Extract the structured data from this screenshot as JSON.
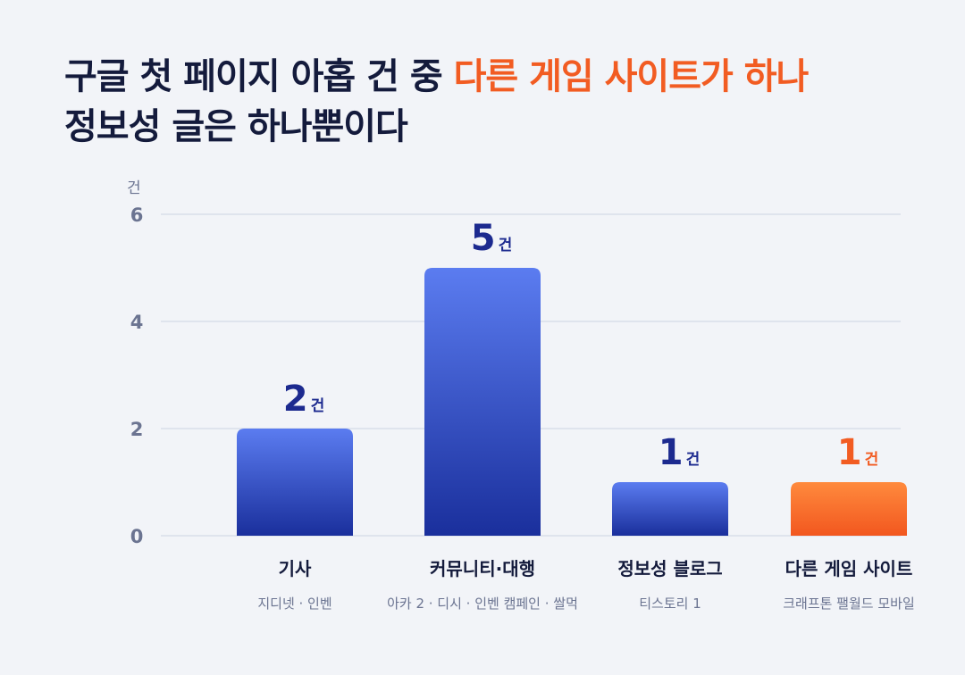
{
  "title": {
    "line1_prefix": "구글 첫 페이지 아홉 건 중 ",
    "line1_accent": "다른 게임 사이트가 하나",
    "line2": "정보성 글은 하나뿐이다"
  },
  "colors": {
    "title": "#141b3c",
    "accent": "#f25c22",
    "bar_top": "#5b7cf0",
    "bar_bottom": "#1a2f9c",
    "bar_highlight_top": "#ff8a3d",
    "bar_highlight_bottom": "#f2571f",
    "value_text": "#1c2a8f",
    "axis_text": "#6b7491"
  },
  "chart_data": {
    "type": "bar",
    "y_unit": "건",
    "value_unit": "건",
    "ylim": [
      0,
      6
    ],
    "yticks": [
      0,
      2,
      4,
      6
    ],
    "grid": true,
    "categories": [
      "기사",
      "커뮤니티·대행",
      "정보성 블로그",
      "다른 게임 사이트"
    ],
    "subtitles": [
      "지디넷 · 인벤",
      "아카 2 · 디시 · 인벤 캠페인 · 쌀먹",
      "티스토리 1",
      "크래프톤 팰월드 모바일"
    ],
    "values": [
      2,
      5,
      1,
      1
    ],
    "highlight": [
      false,
      false,
      false,
      true
    ]
  }
}
